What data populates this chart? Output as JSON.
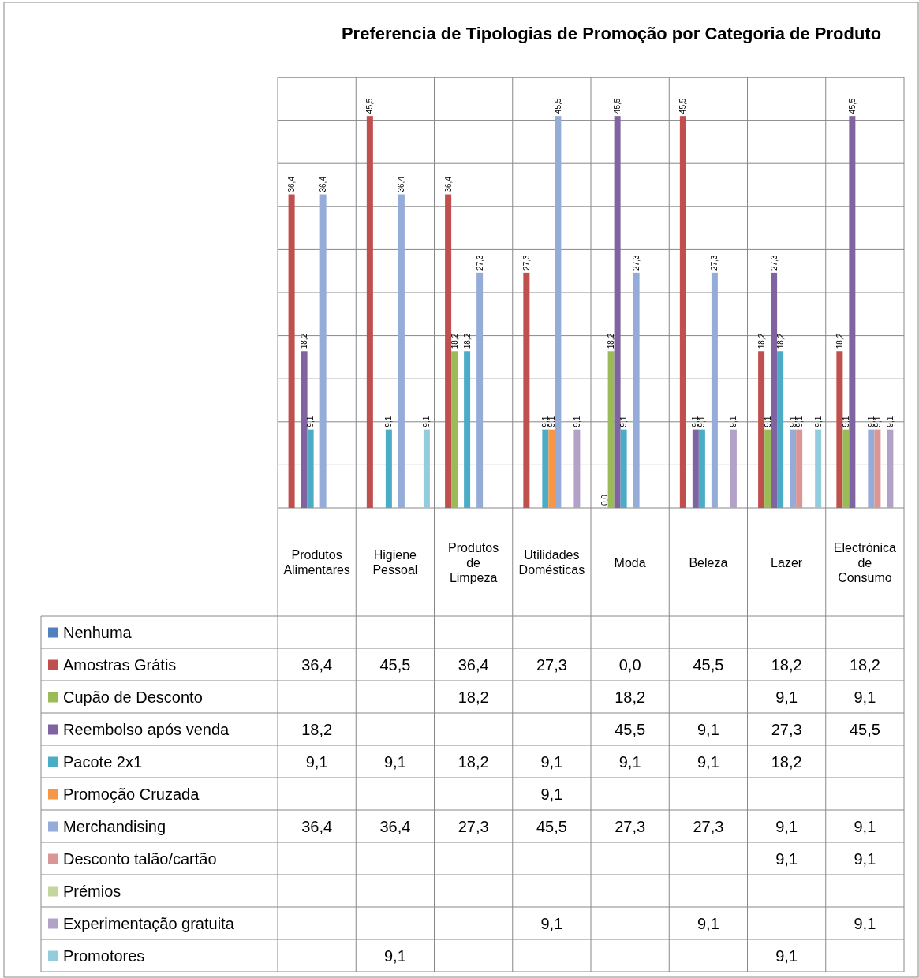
{
  "chart_data": {
    "type": "bar",
    "title": "Preferencia de Tipologias de Promoção por Categoria de Produto",
    "categories": [
      "Produtos Alimentares",
      "Higiene Pessoal",
      "Produtos de Limpeza",
      "Utilidades Domésticas",
      "Moda",
      "Beleza",
      "Lazer",
      "Electrónica de Consumo"
    ],
    "series": [
      {
        "name": "Nenhuma",
        "color": "#4f81bd",
        "values": [
          null,
          null,
          null,
          null,
          null,
          null,
          null,
          null
        ],
        "value_labels": [
          null,
          null,
          null,
          null,
          null,
          null,
          null,
          null
        ]
      },
      {
        "name": "Amostras Grátis",
        "color": "#c0504d",
        "values": [
          36.4,
          45.5,
          36.4,
          27.3,
          0.0,
          45.5,
          18.2,
          18.2
        ],
        "value_labels": [
          "36,4",
          "45,5",
          "36,4",
          "27,3",
          "0,0",
          "45,5",
          "18,2",
          "18,2"
        ]
      },
      {
        "name": "Cupão de Desconto",
        "color": "#9bbb59",
        "values": [
          null,
          null,
          18.2,
          null,
          18.2,
          null,
          9.1,
          9.1
        ],
        "value_labels": [
          null,
          null,
          "18,2",
          null,
          "18,2",
          null,
          "9,1",
          "9,1"
        ]
      },
      {
        "name": "Reembolso após venda",
        "color": "#8064a2",
        "values": [
          18.2,
          null,
          null,
          null,
          45.5,
          9.1,
          27.3,
          45.5
        ],
        "value_labels": [
          "18,2",
          null,
          null,
          null,
          "45,5",
          "9,1",
          "27,3",
          "45,5"
        ]
      },
      {
        "name": "Pacote 2x1",
        "color": "#4bacc6",
        "values": [
          9.1,
          9.1,
          18.2,
          9.1,
          9.1,
          9.1,
          18.2,
          null
        ],
        "value_labels": [
          "9,1",
          "9,1",
          "18,2",
          "9,1",
          "9,1",
          "9,1",
          "18,2",
          null
        ]
      },
      {
        "name": "Promoção Cruzada",
        "color": "#f79646",
        "values": [
          null,
          null,
          null,
          9.1,
          null,
          null,
          null,
          null
        ],
        "value_labels": [
          null,
          null,
          null,
          "9,1",
          null,
          null,
          null,
          null
        ]
      },
      {
        "name": "Merchandising",
        "color": "#95acd8",
        "values": [
          36.4,
          36.4,
          27.3,
          45.5,
          27.3,
          27.3,
          9.1,
          9.1
        ],
        "value_labels": [
          "36,4",
          "36,4",
          "27,3",
          "45,5",
          "27,3",
          "27,3",
          "9,1",
          "9,1"
        ]
      },
      {
        "name": "Desconto talão/cartão",
        "color": "#d99694",
        "values": [
          null,
          null,
          null,
          null,
          null,
          null,
          9.1,
          9.1
        ],
        "value_labels": [
          null,
          null,
          null,
          null,
          null,
          null,
          "9,1",
          "9,1"
        ]
      },
      {
        "name": "Prémios",
        "color": "#c3d69b",
        "values": [
          null,
          null,
          null,
          null,
          null,
          null,
          null,
          null
        ],
        "value_labels": [
          null,
          null,
          null,
          null,
          null,
          null,
          null,
          null
        ]
      },
      {
        "name": "Experimentação gratuita",
        "color": "#b3a2c7",
        "values": [
          null,
          null,
          null,
          9.1,
          null,
          9.1,
          null,
          9.1
        ],
        "value_labels": [
          null,
          null,
          null,
          "9,1",
          null,
          "9,1",
          null,
          "9,1"
        ]
      },
      {
        "name": "Promotores",
        "color": "#93cddd",
        "values": [
          null,
          9.1,
          null,
          null,
          null,
          null,
          9.1,
          null
        ],
        "value_labels": [
          null,
          "9,1",
          null,
          null,
          null,
          null,
          "9,1",
          null
        ]
      }
    ],
    "ylim": [
      0,
      50
    ],
    "yticks": [
      {
        "value": 0,
        "label": null
      },
      {
        "value": 5,
        "label": null
      },
      {
        "value": 10,
        "label": null
      },
      {
        "value": 15,
        "label": null
      },
      {
        "value": 20,
        "label": null
      },
      {
        "value": 25,
        "label": null
      },
      {
        "value": 30,
        "label": null
      },
      {
        "value": 35,
        "label": null
      },
      {
        "value": 40,
        "label": null
      },
      {
        "value": 45,
        "label": null
      },
      {
        "value": 50,
        "label": null
      }
    ],
    "grid": "y",
    "legend": "bottom",
    "tick_labels": "x"
  }
}
